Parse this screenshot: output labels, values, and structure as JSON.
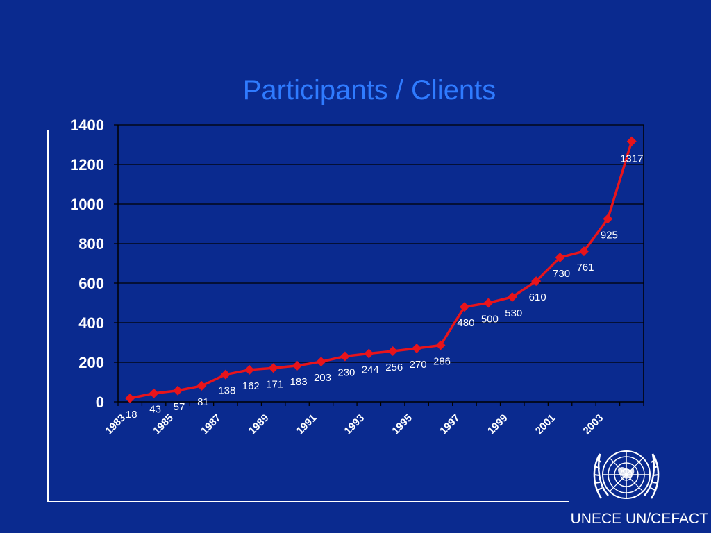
{
  "slide": {
    "title": "Participants / Clients",
    "footer": "UNECE UN/CEFACT"
  },
  "logo": {
    "icon": "un-emblem-icon"
  },
  "colors": {
    "background": "#0a2a8f",
    "title": "#2f7bff",
    "series": "#e8141b",
    "text": "#ffffff"
  },
  "chart_data": {
    "type": "line",
    "title": "Participants / Clients",
    "xlabel": "",
    "ylabel": "",
    "ylim": [
      0,
      1400
    ],
    "yticks": [
      "0",
      "200",
      "400",
      "600",
      "800",
      "1000",
      "1200",
      "1400"
    ],
    "x": [
      1983,
      1984,
      1985,
      1986,
      1987,
      1988,
      1989,
      1990,
      1991,
      1992,
      1993,
      1994,
      1995,
      1996,
      1997,
      1998,
      1999,
      2000,
      2001,
      2002,
      2003,
      2004
    ],
    "xtick_labels": [
      "1983",
      "1985",
      "1987",
      "1989",
      "1991",
      "1993",
      "1995",
      "1997",
      "1999",
      "2001",
      "2003"
    ],
    "series": [
      {
        "values": [
          18,
          43,
          57,
          81,
          138,
          162,
          171,
          183,
          203,
          230,
          244,
          256,
          270,
          286,
          480,
          500,
          530,
          610,
          730,
          761,
          925,
          1317
        ]
      }
    ],
    "grid": true,
    "legend": "none",
    "data_labels": true
  }
}
